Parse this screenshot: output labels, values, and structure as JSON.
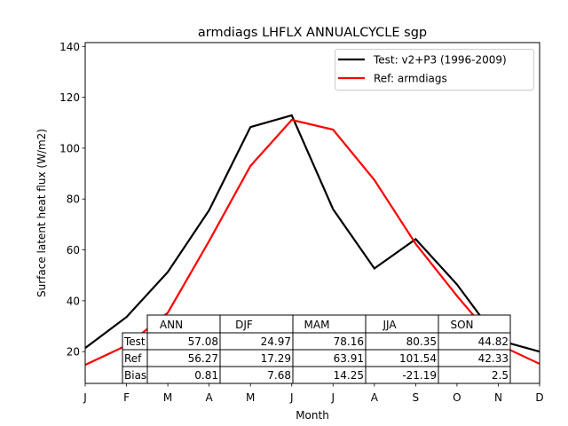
{
  "chart_data": {
    "type": "line",
    "title": "armdiags LHFLX ANNUALCYCLE sgp",
    "xlabel": "Month",
    "ylabel": "Surface latent heat flux (W/m2)",
    "categories": [
      "J",
      "F",
      "M",
      "A",
      "M",
      "J",
      "J",
      "A",
      "S",
      "O",
      "N",
      "D"
    ],
    "ylim": [
      7.5,
      141.5
    ],
    "yticks": [
      20,
      40,
      60,
      80,
      100,
      120,
      140
    ],
    "grid": false,
    "legend_position": "top-right",
    "series": [
      {
        "name": "Test: v2+P3 (1996-2009)",
        "color": "#000000",
        "values": [
          21.4,
          33.6,
          51.3,
          75.6,
          108.3,
          112.9,
          76.0,
          52.7,
          64.2,
          46.4,
          24.5,
          20.0
        ]
      },
      {
        "name": "Ref: armdiags",
        "color": "#ff0000",
        "values": [
          14.8,
          22.4,
          35.3,
          63.5,
          93.0,
          111.1,
          107.3,
          87.5,
          62.4,
          41.9,
          22.8,
          15.2
        ]
      }
    ],
    "table": {
      "columns": [
        "ANN",
        "DJF",
        "MAM",
        "JJA",
        "SON"
      ],
      "rows": [
        {
          "label": "Test",
          "values": [
            "57.08",
            "24.97",
            "78.16",
            "80.35",
            "44.82"
          ]
        },
        {
          "label": "Ref",
          "values": [
            "56.27",
            "17.29",
            "63.91",
            "101.54",
            "42.33"
          ]
        },
        {
          "label": "Bias",
          "values": [
            "0.81",
            "7.68",
            "14.25",
            "-21.19",
            "2.5"
          ]
        }
      ]
    }
  }
}
